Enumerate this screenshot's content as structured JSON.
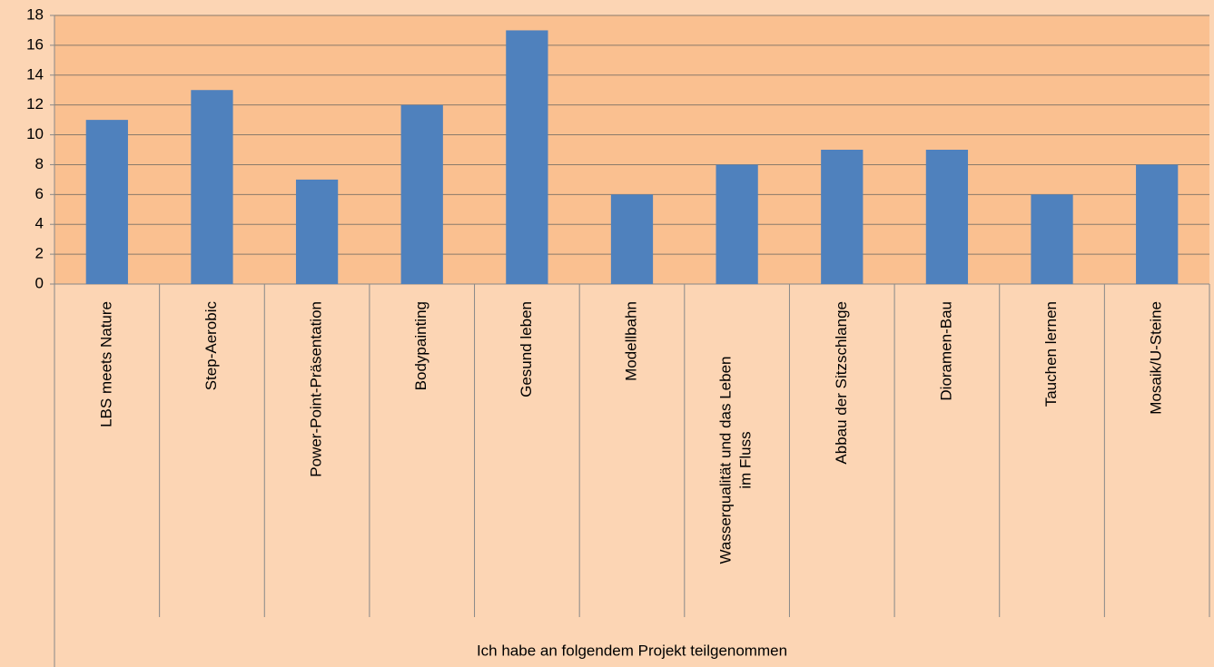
{
  "chart_data": {
    "type": "bar",
    "categories": [
      "LBS meets Nature",
      "Step-Aerobic",
      "Power-Point-Präsentation",
      "Bodypainting",
      "Gesund leben",
      "Modellbahn",
      "Wasserqualität und das Leben im Fluss",
      "Abbau der Sitzschlange",
      "Dioramen-Bau",
      "Tauchen lernen",
      "Mosaik/U-Steine"
    ],
    "values": [
      11,
      13,
      7,
      12,
      17,
      6,
      8,
      9,
      9,
      6,
      8
    ],
    "color": "#4f81bd",
    "ylim": [
      0,
      18
    ],
    "yticks": [
      0,
      2,
      4,
      6,
      8,
      10,
      12,
      14,
      16,
      18
    ],
    "grid": true,
    "x_group_label": "Ich habe an folgendem Projekt teilgenommen"
  }
}
